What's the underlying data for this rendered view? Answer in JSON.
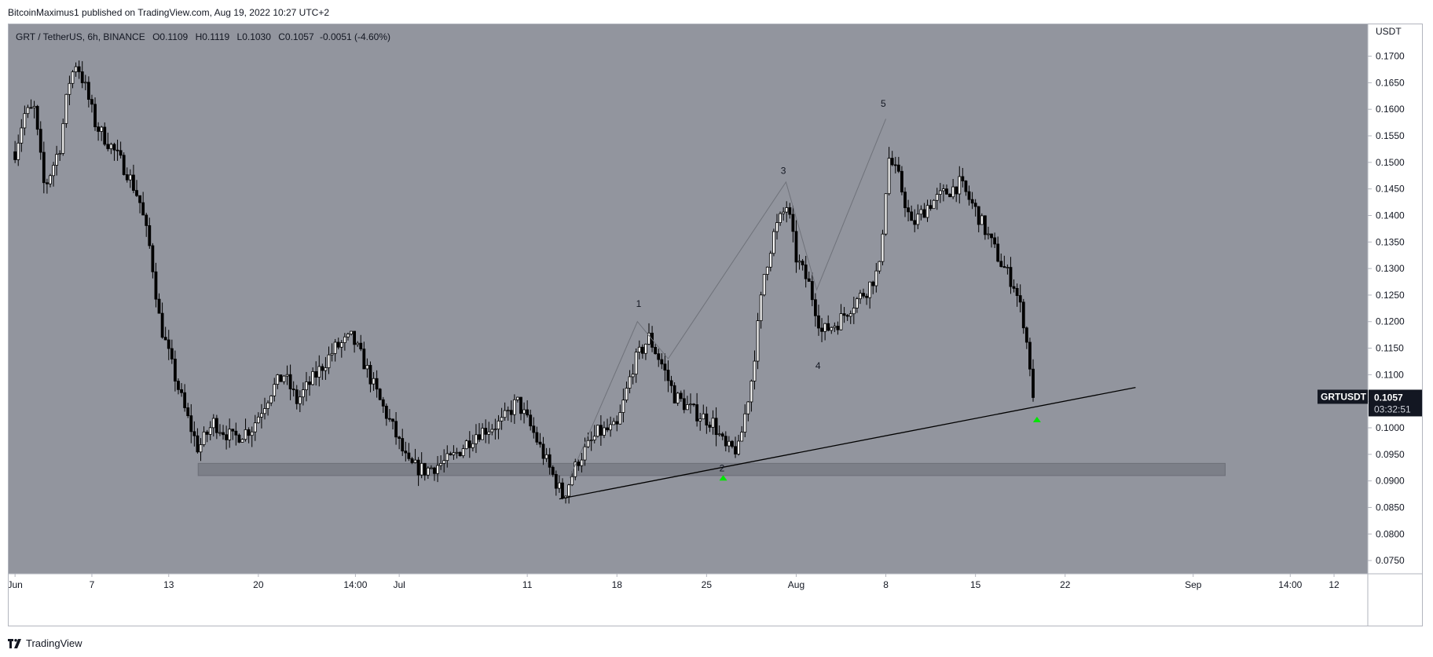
{
  "header": {
    "publish_text": "BitcoinMaximus1 published on TradingView.com, Aug 19, 2022 10:27 UTC+2"
  },
  "legend": {
    "symbol_text": "GRT / TetherUS, 6h, BINANCE",
    "open_key": "O",
    "open": "0.1109",
    "high_key": "H",
    "high": "0.1119",
    "low_key": "L",
    "low": "0.1030",
    "close_key": "C",
    "close": "0.1057",
    "change": "-0.0051 (-4.60%)"
  },
  "footer": {
    "brand": "TradingView"
  },
  "colors": {
    "plot_background": "#92959e",
    "candle": "#000000",
    "support_zone": "#7c7f88",
    "wave_line": "#6f727a",
    "trend_line": "#000000",
    "arrow": "#00e600",
    "price_tag_bg": "#131722",
    "price_tag_text": "#ffffff"
  },
  "chart_data": {
    "type": "candlestick",
    "title": "GRT / TetherUS, 6h, BINANCE",
    "ylabel": "USDT",
    "ylim": [
      0.0725,
      0.176
    ],
    "y_ticks": [
      "0.0750",
      "0.0800",
      "0.0850",
      "0.0900",
      "0.0950",
      "0.1000",
      "0.1050",
      "0.1100",
      "0.1150",
      "0.1200",
      "0.1250",
      "0.1300",
      "0.1350",
      "0.1400",
      "0.1450",
      "0.1500",
      "0.1550",
      "0.1600",
      "0.1650",
      "0.1700"
    ],
    "x_ticks": [
      {
        "label": "Jun",
        "t": 0
      },
      {
        "label": "7",
        "t": 6
      },
      {
        "label": "13",
        "t": 12
      },
      {
        "label": "20",
        "t": 19
      },
      {
        "label": "14:00",
        "t": 26.58
      },
      {
        "label": "Jul",
        "t": 30
      },
      {
        "label": "11",
        "t": 40
      },
      {
        "label": "18",
        "t": 47
      },
      {
        "label": "25",
        "t": 54
      },
      {
        "label": "Aug",
        "t": 61
      },
      {
        "label": "8",
        "t": 68
      },
      {
        "label": "15",
        "t": 75
      },
      {
        "label": "22",
        "t": 82
      },
      {
        "label": "Sep",
        "t": 92
      },
      {
        "label": "14:00",
        "t": 99.58
      },
      {
        "label": "12",
        "t": 103
      }
    ],
    "price_series_anchors": [
      {
        "t": 0,
        "price": 0.152
      },
      {
        "t": 0.7,
        "price": 0.159
      },
      {
        "t": 1.5,
        "price": 0.16
      },
      {
        "t": 2.3,
        "price": 0.145
      },
      {
        "t": 3.5,
        "price": 0.153
      },
      {
        "t": 4.2,
        "price": 0.165
      },
      {
        "t": 4.8,
        "price": 0.169
      },
      {
        "t": 5.5,
        "price": 0.164
      },
      {
        "t": 6.3,
        "price": 0.157
      },
      {
        "t": 7.5,
        "price": 0.153
      },
      {
        "t": 8.8,
        "price": 0.148
      },
      {
        "t": 9.7,
        "price": 0.143
      },
      {
        "t": 10.6,
        "price": 0.133
      },
      {
        "t": 11.3,
        "price": 0.12
      },
      {
        "t": 12.2,
        "price": 0.112
      },
      {
        "t": 13.3,
        "price": 0.103
      },
      {
        "t": 14.3,
        "price": 0.096
      },
      {
        "t": 15.5,
        "price": 0.101
      },
      {
        "t": 17.0,
        "price": 0.098
      },
      {
        "t": 18.5,
        "price": 0.1
      },
      {
        "t": 20.0,
        "price": 0.107
      },
      {
        "t": 21.0,
        "price": 0.11
      },
      {
        "t": 22.0,
        "price": 0.105
      },
      {
        "t": 23.5,
        "price": 0.11
      },
      {
        "t": 25.0,
        "price": 0.115
      },
      {
        "t": 26.3,
        "price": 0.117
      },
      {
        "t": 27.3,
        "price": 0.112
      },
      {
        "t": 28.5,
        "price": 0.105
      },
      {
        "t": 29.5,
        "price": 0.1
      },
      {
        "t": 30.7,
        "price": 0.093
      },
      {
        "t": 32.0,
        "price": 0.092
      },
      {
        "t": 34.0,
        "price": 0.094
      },
      {
        "t": 36.0,
        "price": 0.099
      },
      {
        "t": 38.0,
        "price": 0.101
      },
      {
        "t": 39.2,
        "price": 0.105
      },
      {
        "t": 40.5,
        "price": 0.099
      },
      {
        "t": 41.8,
        "price": 0.092
      },
      {
        "t": 42.8,
        "price": 0.087
      },
      {
        "t": 44.0,
        "price": 0.094
      },
      {
        "t": 45.5,
        "price": 0.099
      },
      {
        "t": 47.0,
        "price": 0.1
      },
      {
        "t": 48.3,
        "price": 0.112
      },
      {
        "t": 49.5,
        "price": 0.117
      },
      {
        "t": 50.5,
        "price": 0.112
      },
      {
        "t": 51.5,
        "price": 0.106
      },
      {
        "t": 53.0,
        "price": 0.103
      },
      {
        "t": 54.5,
        "price": 0.101
      },
      {
        "t": 55.5,
        "price": 0.096
      },
      {
        "t": 56.5,
        "price": 0.096
      },
      {
        "t": 57.5,
        "price": 0.109
      },
      {
        "t": 58.5,
        "price": 0.129
      },
      {
        "t": 59.3,
        "price": 0.137
      },
      {
        "t": 60.3,
        "price": 0.142
      },
      {
        "t": 61.0,
        "price": 0.132
      },
      {
        "t": 62.0,
        "price": 0.127
      },
      {
        "t": 63.0,
        "price": 0.118
      },
      {
        "t": 64.3,
        "price": 0.12
      },
      {
        "t": 65.3,
        "price": 0.123
      },
      {
        "t": 66.5,
        "price": 0.126
      },
      {
        "t": 67.5,
        "price": 0.13
      },
      {
        "t": 68.2,
        "price": 0.151
      },
      {
        "t": 69.0,
        "price": 0.147
      },
      {
        "t": 70.0,
        "price": 0.138
      },
      {
        "t": 71.3,
        "price": 0.142
      },
      {
        "t": 72.5,
        "price": 0.144
      },
      {
        "t": 73.8,
        "price": 0.146
      },
      {
        "t": 75.0,
        "price": 0.141
      },
      {
        "t": 76.0,
        "price": 0.136
      },
      {
        "t": 77.0,
        "price": 0.131
      },
      {
        "t": 78.0,
        "price": 0.127
      },
      {
        "t": 78.7,
        "price": 0.121
      },
      {
        "t": 79.3,
        "price": 0.111
      },
      {
        "t": 79.6,
        "price": 0.1057
      }
    ],
    "wave_labels": [
      {
        "label": "1",
        "t": 48.7,
        "price": 0.1228
      },
      {
        "label": "2",
        "t": 55.2,
        "price": 0.0918
      },
      {
        "label": "3",
        "t": 60.0,
        "price": 0.1478
      },
      {
        "label": "4",
        "t": 62.7,
        "price": 0.1111
      },
      {
        "label": "5",
        "t": 67.8,
        "price": 0.1605
      }
    ],
    "wave_path": [
      {
        "t": 43.3,
        "price": 0.0905
      },
      {
        "t": 48.6,
        "price": 0.12
      },
      {
        "t": 51.0,
        "price": 0.113
      },
      {
        "t": 60.2,
        "price": 0.1463
      },
      {
        "t": 62.6,
        "price": 0.126
      },
      {
        "t": 68.0,
        "price": 0.1582
      }
    ],
    "trend_line": {
      "t1": 42.5,
      "p1": 0.0866,
      "t2": 87.5,
      "p2": 0.1076
    },
    "support_zone": {
      "t1": 14.3,
      "t2": 94.5,
      "p_low": 0.091,
      "p_high": 0.0933
    },
    "arrows": [
      {
        "t": 55.3,
        "price": 0.0905
      },
      {
        "t": 79.8,
        "price": 0.1015
      }
    ],
    "last_price": {
      "symbol": "GRTUSDT",
      "price": "0.1057",
      "countdown": "03:32:51",
      "value": 0.1057
    }
  }
}
